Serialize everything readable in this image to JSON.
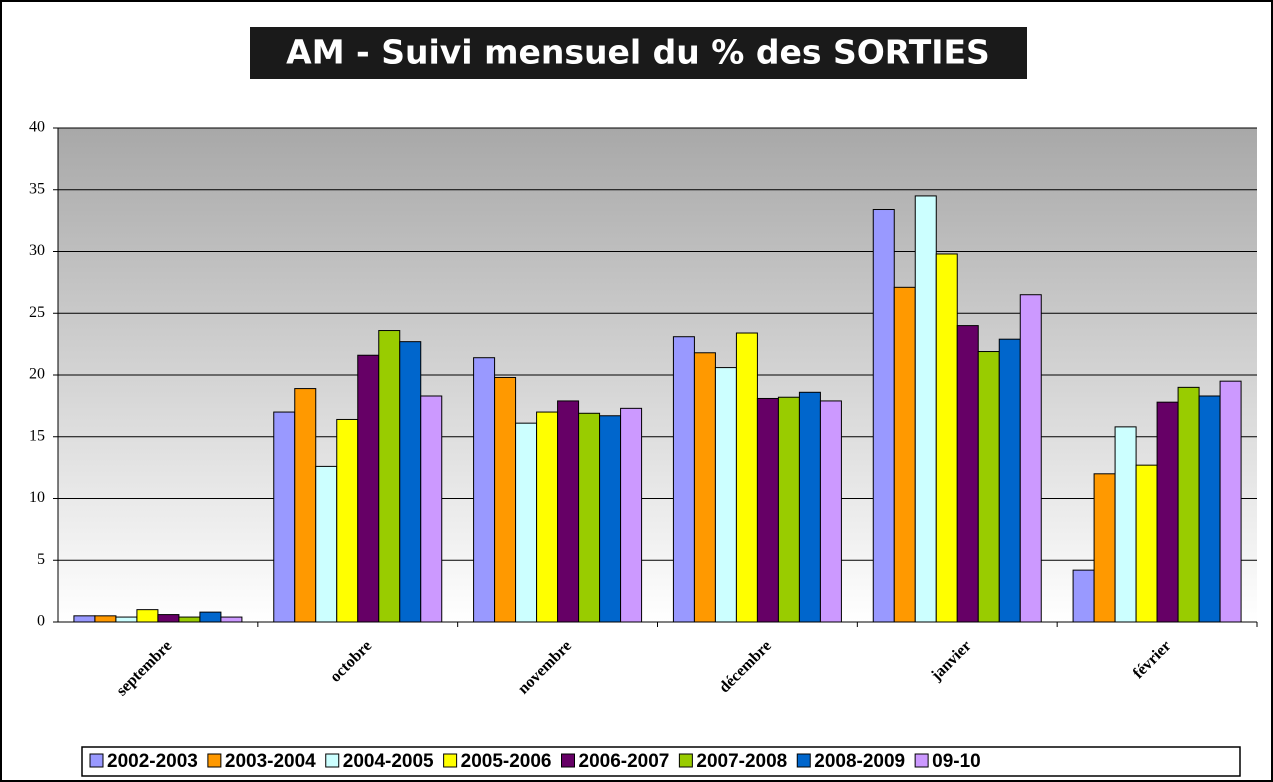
{
  "chart_data": {
    "type": "bar",
    "title": "AM - Suivi mensuel du % des SORTIES",
    "categories": [
      "septembre",
      "octobre",
      "novembre",
      "décembre",
      "janvier",
      "février"
    ],
    "series": [
      {
        "name": "2002-2003",
        "color": "#9999ff",
        "values": [
          0.5,
          17.0,
          21.4,
          23.1,
          33.4,
          4.2
        ]
      },
      {
        "name": "2003-2004",
        "color": "#ff9900",
        "values": [
          0.5,
          18.9,
          19.8,
          21.8,
          27.1,
          12.0
        ]
      },
      {
        "name": "2004-2005",
        "color": "#ccffff",
        "values": [
          0.4,
          12.6,
          16.1,
          20.6,
          34.5,
          15.8
        ]
      },
      {
        "name": "2005-2006",
        "color": "#ffff00",
        "values": [
          1.0,
          16.4,
          17.0,
          23.4,
          29.8,
          12.7
        ]
      },
      {
        "name": "2006-2007",
        "color": "#660066",
        "values": [
          0.6,
          21.6,
          17.9,
          18.1,
          24.0,
          17.8
        ]
      },
      {
        "name": "2007-2008",
        "color": "#99cc00",
        "values": [
          0.4,
          23.6,
          16.9,
          18.2,
          21.9,
          19.0
        ]
      },
      {
        "name": "2008-2009",
        "color": "#0066cc",
        "values": [
          0.8,
          22.7,
          16.7,
          18.6,
          22.9,
          18.3
        ]
      },
      {
        "name": "09-10",
        "color": "#cc99ff",
        "values": [
          0.4,
          18.3,
          17.3,
          17.9,
          26.5,
          19.5
        ]
      }
    ],
    "ylim": [
      0,
      40
    ],
    "yticks": [
      0,
      5,
      10,
      15,
      20,
      25,
      30,
      35,
      40
    ],
    "grid": true
  }
}
